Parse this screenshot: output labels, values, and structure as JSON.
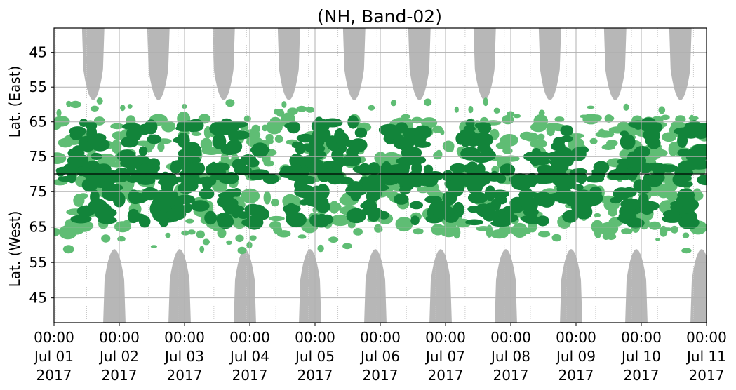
{
  "chart_data": {
    "type": "heatmap",
    "title": "(NH, Band-02)",
    "ylabel_top": "Lat. (East)",
    "ylabel_bottom": "Lat. (West)",
    "x_ticks": [
      {
        "time": "00:00",
        "date": "Jul 01",
        "year": "2017"
      },
      {
        "time": "00:00",
        "date": "Jul 02",
        "year": "2017"
      },
      {
        "time": "00:00",
        "date": "Jul 03",
        "year": "2017"
      },
      {
        "time": "00:00",
        "date": "Jul 04",
        "year": "2017"
      },
      {
        "time": "00:00",
        "date": "Jul 05",
        "year": "2017"
      },
      {
        "time": "00:00",
        "date": "Jul 06",
        "year": "2017"
      },
      {
        "time": "00:00",
        "date": "Jul 07",
        "year": "2017"
      },
      {
        "time": "00:00",
        "date": "Jul 08",
        "year": "2017"
      },
      {
        "time": "00:00",
        "date": "Jul 09",
        "year": "2017"
      },
      {
        "time": "00:00",
        "date": "Jul 10",
        "year": "2017"
      },
      {
        "time": "00:00",
        "date": "Jul 11",
        "year": "2017"
      }
    ],
    "x_range": [
      "2017-07-01 00:00",
      "2017-07-11 00:00"
    ],
    "y_ticks_east": [
      "45",
      "55",
      "65",
      "75"
    ],
    "y_ticks_west": [
      "75",
      "65",
      "55",
      "45"
    ],
    "y_range_east": [
      38,
      80
    ],
    "y_range_west": [
      80,
      38
    ],
    "grid": true,
    "colors": {
      "dark_green": "#12843a",
      "light_green": "#5fbd74",
      "gray": "#b7b7b7",
      "grid": "#b0b0b0"
    },
    "gray_lobes_east_days": [
      0.6,
      1.6,
      2.6,
      3.6,
      4.6,
      5.6,
      6.6,
      7.6,
      8.6,
      9.6
    ],
    "gray_lobes_west_days": [
      1.0,
      2.0,
      3.0,
      4.0,
      5.0,
      6.0,
      7.0,
      8.0,
      9.0,
      10.0
    ]
  }
}
